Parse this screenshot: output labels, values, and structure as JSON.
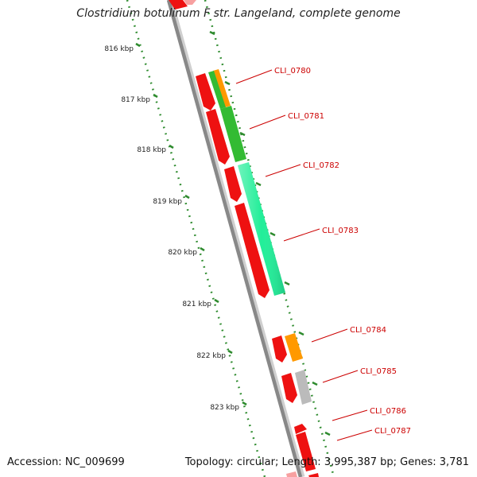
{
  "title": "Clostridium botulinum F str. Langeland, complete genome",
  "footer": {
    "accession_label": "Accession:",
    "accession": "NC_009699",
    "topology_label": "Topology:",
    "topology": "circular",
    "length_label": "Length:",
    "length": "3,995,387 bp",
    "genes_label": "Genes:",
    "genes": "3,781"
  },
  "map": {
    "scale_labels": [
      "816 kbp",
      "817 kbp",
      "818 kbp",
      "819 kbp",
      "820 kbp",
      "821 kbp",
      "822 kbp",
      "823 kbp"
    ],
    "gene_labels": [
      "CLI_0780",
      "CLI_0781",
      "CLI_0782",
      "CLI_0783",
      "CLI_0784",
      "CLI_0785",
      "CLI_0786",
      "CLI_0787"
    ],
    "colors": {
      "backbone": "#888888",
      "scale": "#2e8b2e",
      "label": "#cc0000",
      "cds_reverse": "#ee1111",
      "gene_orange": "#ff9900",
      "gene_green": "#33bb33",
      "gene_teal": "#22ee99",
      "gene_grey": "#bbbbbb"
    }
  }
}
